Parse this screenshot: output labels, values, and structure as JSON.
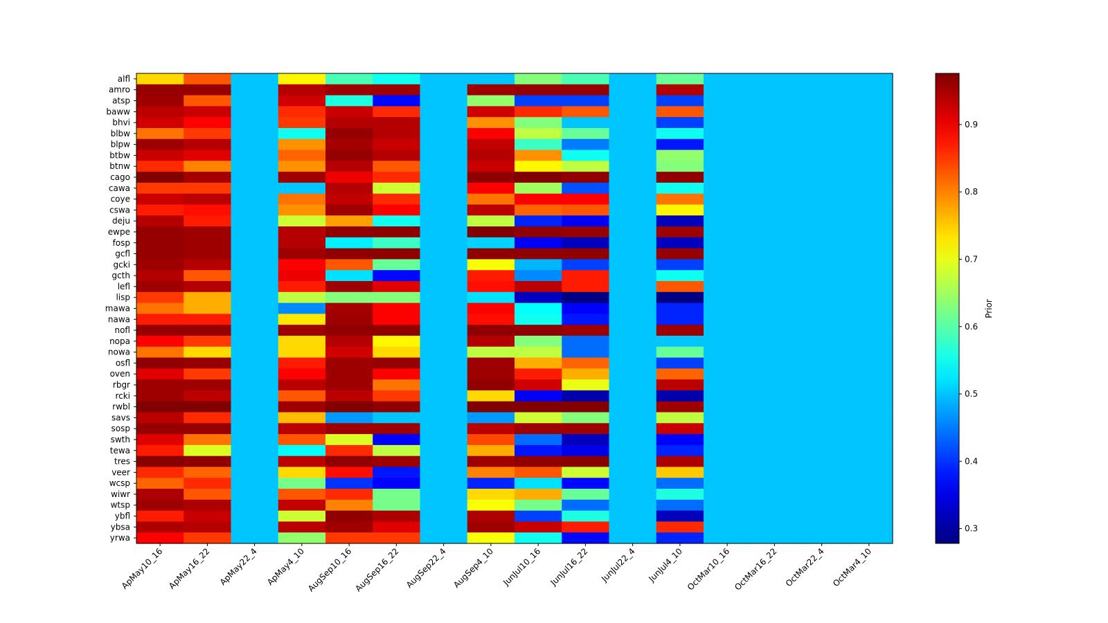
{
  "chart_data": {
    "type": "heatmap",
    "title": "",
    "xlabel": "",
    "ylabel": "",
    "colorbar_label": "Prior",
    "colormap": "jet",
    "vmin": 0.278,
    "vmax": 0.976,
    "colorbar_ticks": [
      0.3,
      0.4,
      0.5,
      0.6,
      0.7,
      0.8,
      0.9
    ],
    "columns": [
      "ApMay10_16",
      "ApMay16_22",
      "ApMay22_4",
      "ApMay4_10",
      "AugSep10_16",
      "AugSep16_22",
      "AugSep22_4",
      "AugSep4_10",
      "JunJul10_16",
      "JunJul16_22",
      "JunJul22_4",
      "JunJul4_10",
      "OctMar10_16",
      "OctMar16_22",
      "OctMar22_4",
      "OctMar4_10"
    ],
    "rows": [
      "alfl",
      "amro",
      "atsp",
      "baww",
      "bhvi",
      "blbw",
      "blpw",
      "btbw",
      "btnw",
      "cago",
      "cawa",
      "coye",
      "cswa",
      "deju",
      "ewpe",
      "fosp",
      "gcfl",
      "gcki",
      "gcth",
      "lefl",
      "lisp",
      "mawa",
      "nawa",
      "nofl",
      "nopa",
      "nowa",
      "osfl",
      "oven",
      "rbgr",
      "rcki",
      "rwbl",
      "savs",
      "sosp",
      "swth",
      "tewa",
      "tres",
      "veer",
      "wcsp",
      "wiwr",
      "wtsp",
      "ybfl",
      "ybsa",
      "yrwa"
    ],
    "values": [
      [
        0.74,
        0.83,
        0.5,
        0.72,
        0.59,
        0.55,
        0.5,
        0.5,
        0.63,
        0.59,
        0.5,
        0.61,
        0.5,
        0.5,
        0.5,
        0.5
      ],
      [
        0.96,
        0.96,
        0.5,
        0.94,
        0.955,
        0.955,
        0.5,
        0.955,
        0.96,
        0.96,
        0.5,
        0.94,
        0.5,
        0.5,
        0.5,
        0.5
      ],
      [
        0.955,
        0.83,
        0.5,
        0.92,
        0.56,
        0.37,
        0.5,
        0.64,
        0.41,
        0.41,
        0.5,
        0.41,
        0.5,
        0.5,
        0.5,
        0.5
      ],
      [
        0.935,
        0.925,
        0.5,
        0.86,
        0.925,
        0.86,
        0.5,
        0.92,
        0.86,
        0.83,
        0.5,
        0.83,
        0.5,
        0.5,
        0.5,
        0.5
      ],
      [
        0.92,
        0.89,
        0.5,
        0.85,
        0.94,
        0.94,
        0.5,
        0.79,
        0.63,
        0.5,
        0.5,
        0.41,
        0.5,
        0.5,
        0.5,
        0.5
      ],
      [
        0.81,
        0.85,
        0.5,
        0.55,
        0.96,
        0.94,
        0.5,
        0.89,
        0.67,
        0.61,
        0.5,
        0.55,
        0.5,
        0.5,
        0.5,
        0.5
      ],
      [
        0.955,
        0.94,
        0.5,
        0.79,
        0.95,
        0.925,
        0.5,
        0.93,
        0.58,
        0.45,
        0.5,
        0.38,
        0.5,
        0.5,
        0.5,
        0.5
      ],
      [
        0.925,
        0.91,
        0.5,
        0.82,
        0.96,
        0.94,
        0.5,
        0.94,
        0.79,
        0.55,
        0.5,
        0.64,
        0.5,
        0.5,
        0.5,
        0.5
      ],
      [
        0.86,
        0.8,
        0.5,
        0.79,
        0.94,
        0.83,
        0.5,
        0.925,
        0.72,
        0.67,
        0.5,
        0.63,
        0.5,
        0.5,
        0.5,
        0.5
      ],
      [
        0.975,
        0.95,
        0.5,
        0.955,
        0.9,
        0.86,
        0.5,
        0.965,
        0.975,
        0.965,
        0.5,
        0.965,
        0.5,
        0.5,
        0.5,
        0.5
      ],
      [
        0.85,
        0.85,
        0.5,
        0.5,
        0.94,
        0.68,
        0.5,
        0.89,
        0.65,
        0.42,
        0.5,
        0.55,
        0.5,
        0.5,
        0.5,
        0.5
      ],
      [
        0.925,
        0.935,
        0.5,
        0.81,
        0.93,
        0.86,
        0.5,
        0.81,
        0.89,
        0.89,
        0.5,
        0.81,
        0.5,
        0.5,
        0.5,
        0.5
      ],
      [
        0.87,
        0.88,
        0.5,
        0.79,
        0.955,
        0.89,
        0.5,
        0.935,
        0.82,
        0.83,
        0.5,
        0.72,
        0.5,
        0.5,
        0.5,
        0.5
      ],
      [
        0.94,
        0.87,
        0.5,
        0.68,
        0.78,
        0.55,
        0.5,
        0.67,
        0.39,
        0.36,
        0.5,
        0.32,
        0.5,
        0.5,
        0.5,
        0.5
      ],
      [
        0.96,
        0.955,
        0.5,
        0.94,
        0.965,
        0.965,
        0.5,
        0.975,
        0.965,
        0.96,
        0.5,
        0.955,
        0.5,
        0.5,
        0.5,
        0.5
      ],
      [
        0.96,
        0.955,
        0.5,
        0.94,
        0.53,
        0.58,
        0.5,
        0.51,
        0.36,
        0.32,
        0.5,
        0.32,
        0.5,
        0.5,
        0.5,
        0.5
      ],
      [
        0.96,
        0.955,
        0.5,
        0.955,
        0.965,
        0.965,
        0.5,
        0.965,
        0.965,
        0.965,
        0.5,
        0.96,
        0.5,
        0.5,
        0.5,
        0.5
      ],
      [
        0.955,
        0.94,
        0.5,
        0.89,
        0.83,
        0.61,
        0.5,
        0.71,
        0.49,
        0.41,
        0.5,
        0.41,
        0.5,
        0.5,
        0.5,
        0.5
      ],
      [
        0.94,
        0.83,
        0.5,
        0.9,
        0.52,
        0.37,
        0.5,
        0.87,
        0.46,
        0.87,
        0.5,
        0.55,
        0.5,
        0.5,
        0.5,
        0.5
      ],
      [
        0.955,
        0.94,
        0.5,
        0.87,
        0.955,
        0.91,
        0.5,
        0.88,
        0.935,
        0.87,
        0.5,
        0.83,
        0.5,
        0.5,
        0.5,
        0.5
      ],
      [
        0.85,
        0.77,
        0.5,
        0.67,
        0.63,
        0.63,
        0.5,
        0.52,
        0.32,
        0.28,
        0.5,
        0.28,
        0.5,
        0.5,
        0.5,
        0.5
      ],
      [
        0.81,
        0.77,
        0.5,
        0.46,
        0.95,
        0.89,
        0.5,
        0.89,
        0.54,
        0.365,
        0.5,
        0.39,
        0.5,
        0.5,
        0.5,
        0.5
      ],
      [
        0.87,
        0.87,
        0.5,
        0.73,
        0.955,
        0.89,
        0.5,
        0.88,
        0.55,
        0.38,
        0.5,
        0.39,
        0.5,
        0.5,
        0.5,
        0.5
      ],
      [
        0.96,
        0.96,
        0.5,
        0.955,
        0.965,
        0.965,
        0.5,
        0.965,
        0.965,
        0.955,
        0.5,
        0.955,
        0.5,
        0.5,
        0.5,
        0.5
      ],
      [
        0.89,
        0.85,
        0.5,
        0.74,
        0.94,
        0.72,
        0.5,
        0.94,
        0.63,
        0.44,
        0.5,
        0.5,
        0.5,
        0.5,
        0.5,
        0.5
      ],
      [
        0.81,
        0.74,
        0.5,
        0.74,
        0.92,
        0.74,
        0.5,
        0.67,
        0.67,
        0.44,
        0.5,
        0.61,
        0.5,
        0.5,
        0.5,
        0.5
      ],
      [
        0.965,
        0.96,
        0.5,
        0.87,
        0.955,
        0.96,
        0.5,
        0.955,
        0.77,
        0.82,
        0.5,
        0.41,
        0.5,
        0.5,
        0.5,
        0.5
      ],
      [
        0.91,
        0.85,
        0.5,
        0.89,
        0.955,
        0.89,
        0.5,
        0.955,
        0.87,
        0.77,
        0.5,
        0.82,
        0.5,
        0.5,
        0.5,
        0.5
      ],
      [
        0.955,
        0.955,
        0.5,
        0.935,
        0.955,
        0.81,
        0.5,
        0.965,
        0.92,
        0.7,
        0.5,
        0.935,
        0.5,
        0.5,
        0.5,
        0.5
      ],
      [
        0.955,
        0.935,
        0.5,
        0.83,
        0.935,
        0.85,
        0.5,
        0.74,
        0.36,
        0.31,
        0.5,
        0.31,
        0.5,
        0.5,
        0.5,
        0.5
      ],
      [
        0.975,
        0.975,
        0.5,
        0.955,
        0.975,
        0.965,
        0.5,
        0.975,
        0.975,
        0.975,
        0.5,
        0.955,
        0.5,
        0.5,
        0.5,
        0.5
      ],
      [
        0.935,
        0.86,
        0.5,
        0.76,
        0.47,
        0.5,
        0.5,
        0.47,
        0.68,
        0.63,
        0.5,
        0.67,
        0.5,
        0.5,
        0.5,
        0.5
      ],
      [
        0.96,
        0.96,
        0.5,
        0.935,
        0.955,
        0.955,
        0.5,
        0.935,
        0.955,
        0.955,
        0.5,
        0.925,
        0.5,
        0.5,
        0.5,
        0.5
      ],
      [
        0.91,
        0.81,
        0.5,
        0.83,
        0.69,
        0.365,
        0.5,
        0.84,
        0.44,
        0.32,
        0.5,
        0.365,
        0.5,
        0.5,
        0.5,
        0.5
      ],
      [
        0.87,
        0.69,
        0.5,
        0.54,
        0.86,
        0.67,
        0.5,
        0.77,
        0.38,
        0.35,
        0.5,
        0.39,
        0.5,
        0.5,
        0.5,
        0.5
      ],
      [
        0.97,
        0.965,
        0.5,
        0.935,
        0.965,
        0.955,
        0.5,
        0.955,
        0.965,
        0.97,
        0.5,
        0.945,
        0.5,
        0.5,
        0.5,
        0.5
      ],
      [
        0.86,
        0.82,
        0.5,
        0.74,
        0.88,
        0.38,
        0.5,
        0.8,
        0.83,
        0.68,
        0.5,
        0.75,
        0.5,
        0.5,
        0.5,
        0.5
      ],
      [
        0.82,
        0.86,
        0.5,
        0.62,
        0.4,
        0.365,
        0.5,
        0.39,
        0.52,
        0.37,
        0.5,
        0.44,
        0.5,
        0.5,
        0.5,
        0.5
      ],
      [
        0.945,
        0.83,
        0.5,
        0.83,
        0.86,
        0.62,
        0.5,
        0.74,
        0.77,
        0.61,
        0.5,
        0.56,
        0.5,
        0.5,
        0.5,
        0.5
      ],
      [
        0.955,
        0.945,
        0.5,
        0.93,
        0.8,
        0.62,
        0.5,
        0.71,
        0.62,
        0.44,
        0.5,
        0.44,
        0.5,
        0.5,
        0.5,
        0.5
      ],
      [
        0.87,
        0.925,
        0.5,
        0.68,
        0.965,
        0.945,
        0.5,
        0.945,
        0.41,
        0.56,
        0.5,
        0.32,
        0.5,
        0.5,
        0.5,
        0.5
      ],
      [
        0.945,
        0.94,
        0.5,
        0.935,
        0.955,
        0.91,
        0.5,
        0.955,
        0.925,
        0.87,
        0.5,
        0.86,
        0.5,
        0.5,
        0.5,
        0.5
      ],
      [
        0.89,
        0.85,
        0.5,
        0.64,
        0.85,
        0.85,
        0.5,
        0.71,
        0.55,
        0.37,
        0.5,
        0.39,
        0.5,
        0.5,
        0.5,
        0.5
      ]
    ]
  }
}
